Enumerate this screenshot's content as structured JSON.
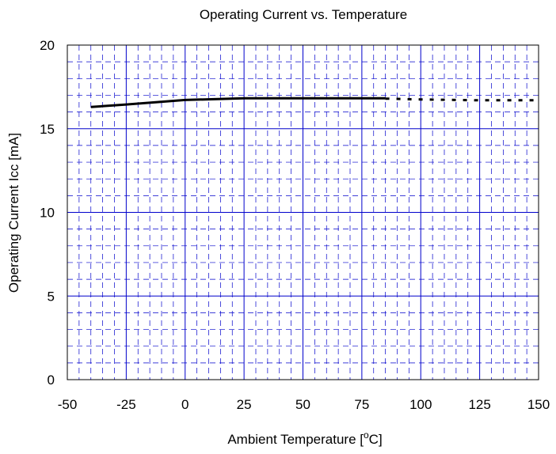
{
  "chart_data": {
    "type": "line",
    "title": "Operating Current vs. Temperature",
    "xlabel_main": "Ambient Temperature [",
    "xlabel_sup": "o",
    "xlabel_tail": "C]",
    "ylabel": "Operating Current Icc [mA]",
    "xlim": [
      -50,
      150
    ],
    "ylim": [
      0,
      20
    ],
    "x_ticks": [
      -50,
      -25,
      0,
      25,
      50,
      75,
      100,
      125,
      150
    ],
    "y_ticks": [
      0,
      5,
      10,
      15,
      20
    ],
    "x_tick_labels": [
      "-50",
      "-25",
      "0",
      "25",
      "50",
      "75",
      "100",
      "125",
      "150"
    ],
    "y_tick_labels": [
      "0",
      "5",
      "10",
      "15",
      "20"
    ],
    "grid": true,
    "grid_color": "#0000cc",
    "line_color": "#000000",
    "series": [
      {
        "style": "solid",
        "x": [
          -40,
          -25,
          0,
          25,
          50,
          75,
          85
        ],
        "y": [
          16.3,
          16.45,
          16.72,
          16.82,
          16.82,
          16.82,
          16.82
        ]
      },
      {
        "style": "dotted",
        "x": [
          85,
          100,
          125,
          150
        ],
        "y": [
          16.8,
          16.75,
          16.7,
          16.7
        ]
      }
    ]
  }
}
